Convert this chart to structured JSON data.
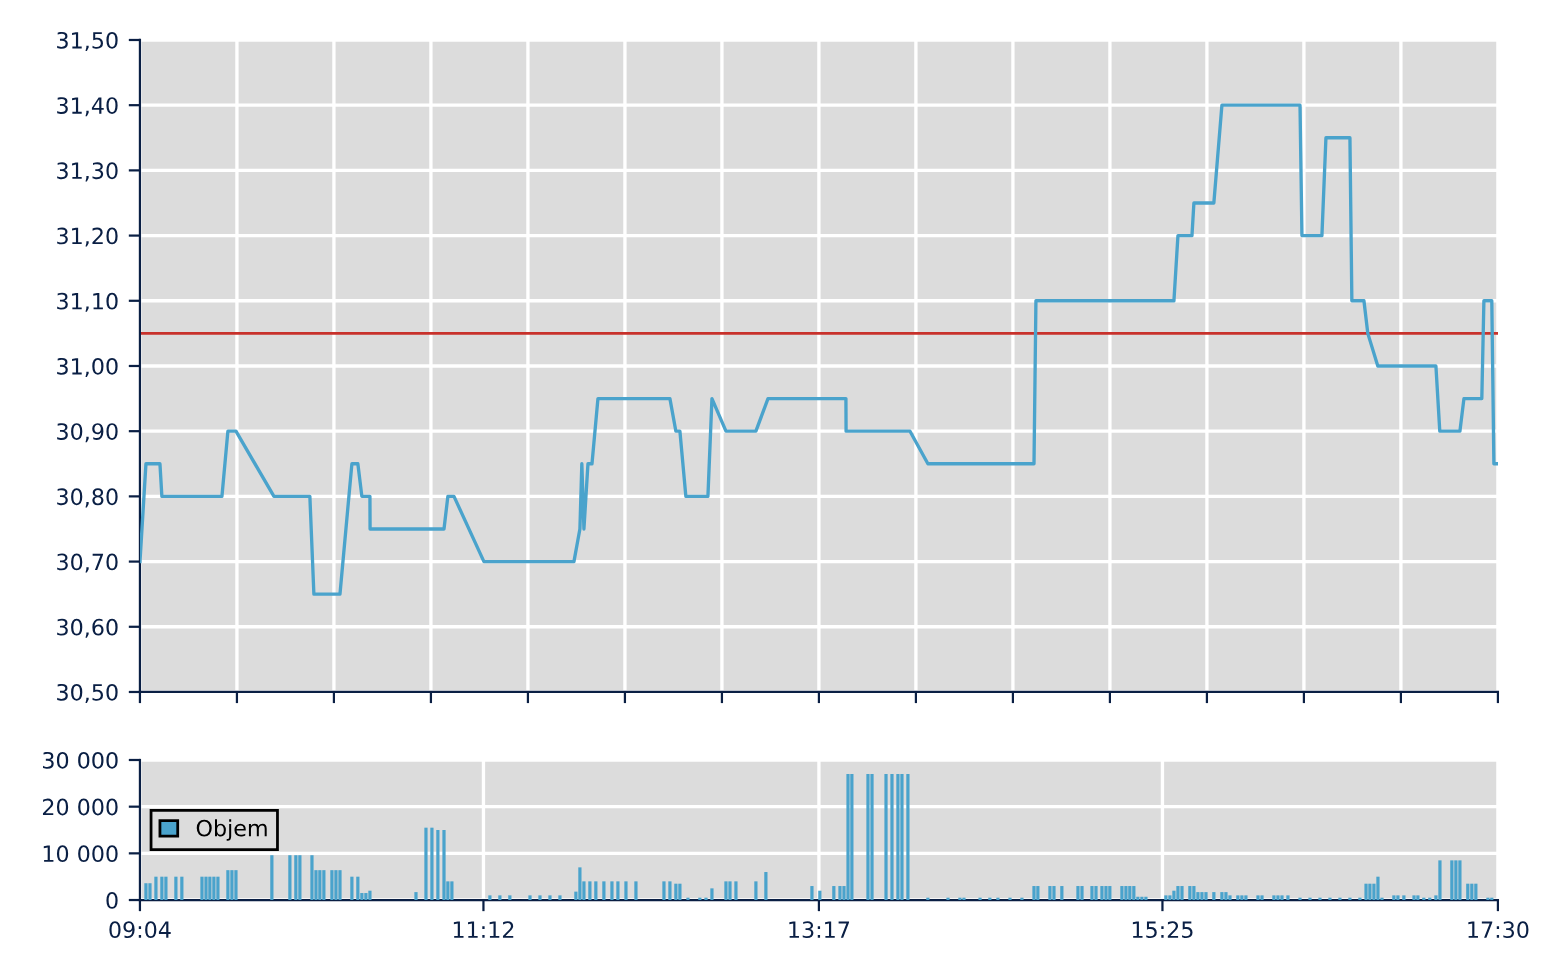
{
  "chart_data": [
    {
      "type": "line",
      "line_style": "solid",
      "marker": "none",
      "grid": true,
      "tick_labels": "y",
      "x": [
        9.067,
        9.104,
        9.191,
        9.203,
        9.576,
        9.613,
        9.663,
        9.899,
        10.122,
        10.147,
        10.309,
        10.383,
        10.42,
        10.445,
        10.495,
        10.496,
        10.955,
        10.979,
        11.017,
        11.203,
        11.762,
        11.799,
        11.811,
        11.824,
        11.849,
        11.874,
        11.911,
        12.358,
        12.395,
        12.42,
        12.457,
        12.594,
        12.619,
        12.706,
        12.892,
        12.967,
        13.451,
        13.452,
        13.849,
        13.96,
        14.619,
        14.631,
        15.488,
        15.513,
        15.6,
        15.612,
        15.736,
        15.786,
        16.271,
        16.283,
        16.407,
        16.432,
        16.581,
        16.593,
        16.668,
        16.692,
        16.754,
        17.115,
        17.139,
        17.264,
        17.289,
        17.4,
        17.413,
        17.462,
        17.475,
        17.5
      ],
      "series": [
        {
          "color": "#4aa3cc",
          "values": [
            30.7,
            30.85,
            30.85,
            30.8,
            30.8,
            30.9,
            30.9,
            30.8,
            30.8,
            30.65,
            30.65,
            30.85,
            30.85,
            30.8,
            30.8,
            30.75,
            30.75,
            30.8,
            30.8,
            30.7,
            30.7,
            30.75,
            30.85,
            30.75,
            30.85,
            30.85,
            30.95,
            30.95,
            30.9,
            30.9,
            30.8,
            30.8,
            30.95,
            30.9,
            30.9,
            30.95,
            30.95,
            30.9,
            30.9,
            30.85,
            30.85,
            31.1,
            31.1,
            31.2,
            31.2,
            31.25,
            31.25,
            31.4,
            31.4,
            31.2,
            31.2,
            31.35,
            31.35,
            31.1,
            31.1,
            31.05,
            31.0,
            31.0,
            30.9,
            30.9,
            30.95,
            30.95,
            31.1,
            31.1,
            30.85,
            30.85
          ]
        }
      ],
      "xlim": [
        9.0667,
        17.5
      ],
      "xticks": [
        {
          "value": 9.0667,
          "label": null
        },
        {
          "value": 9.6691,
          "label": null
        },
        {
          "value": 10.2714,
          "label": null
        },
        {
          "value": 10.8738,
          "label": null
        },
        {
          "value": 11.4762,
          "label": null
        },
        {
          "value": 12.0786,
          "label": null
        },
        {
          "value": 12.681,
          "label": null
        },
        {
          "value": 13.2833,
          "label": null
        },
        {
          "value": 13.8857,
          "label": null
        },
        {
          "value": 14.4881,
          "label": null
        },
        {
          "value": 15.0905,
          "label": null
        },
        {
          "value": 15.6929,
          "label": null
        },
        {
          "value": 16.2952,
          "label": null
        },
        {
          "value": 16.8976,
          "label": null
        },
        {
          "value": 17.5,
          "label": null
        }
      ],
      "ylim": [
        30.5,
        31.5
      ],
      "yticks": [
        {
          "value": 30.5,
          "label": "30,50"
        },
        {
          "value": 30.6,
          "label": "30,60"
        },
        {
          "value": 30.7,
          "label": "30,70"
        },
        {
          "value": 30.8,
          "label": "30,80"
        },
        {
          "value": 30.9,
          "label": "30,90"
        },
        {
          "value": 31.0,
          "label": "31,00"
        },
        {
          "value": 31.1,
          "label": "31,10"
        },
        {
          "value": 31.2,
          "label": "31,20"
        },
        {
          "value": 31.3,
          "label": "31,30"
        },
        {
          "value": 31.4,
          "label": "31,40"
        },
        {
          "value": 31.5,
          "label": "31,50"
        }
      ],
      "ref_lines": [
        {
          "axis": "y",
          "value": 31.05,
          "color": "#c8312b"
        }
      ]
    },
    {
      "type": "bar",
      "grid": true,
      "legend": "left",
      "x": [
        9.104,
        9.129,
        9.166,
        9.203,
        9.228,
        9.29,
        9.327,
        9.452,
        9.477,
        9.501,
        9.526,
        9.551,
        9.613,
        9.638,
        9.663,
        9.886,
        9.998,
        10.035,
        10.06,
        10.135,
        10.16,
        10.184,
        10.209,
        10.259,
        10.284,
        10.309,
        10.383,
        10.42,
        10.445,
        10.47,
        10.495,
        10.781,
        10.843,
        10.88,
        10.917,
        10.955,
        10.979,
        11.004,
        11.24,
        11.302,
        11.364,
        11.489,
        11.551,
        11.613,
        11.675,
        11.774,
        11.799,
        11.824,
        11.861,
        11.898,
        11.948,
        11.998,
        12.035,
        12.085,
        12.147,
        12.321,
        12.358,
        12.395,
        12.42,
        12.47,
        12.544,
        12.582,
        12.619,
        12.706,
        12.731,
        12.768,
        12.892,
        12.954,
        13.24,
        13.289,
        13.376,
        13.414,
        13.439,
        13.464,
        13.488,
        13.588,
        13.613,
        13.7,
        13.737,
        13.774,
        13.799,
        13.836,
        13.96,
        14.085,
        14.159,
        14.184,
        14.284,
        14.345,
        14.395,
        14.47,
        14.544,
        14.619,
        14.643,
        14.718,
        14.743,
        14.792,
        14.892,
        14.917,
        14.979,
        15.004,
        15.041,
        15.066,
        15.09,
        15.165,
        15.19,
        15.214,
        15.239,
        15.264,
        15.289,
        15.314,
        15.438,
        15.463,
        15.488,
        15.513,
        15.538,
        15.587,
        15.612,
        15.637,
        15.662,
        15.687,
        15.736,
        15.786,
        15.811,
        15.836,
        15.885,
        15.91,
        15.935,
        16.01,
        16.035,
        16.109,
        16.134,
        16.159,
        16.196,
        16.271,
        16.333,
        16.395,
        16.457,
        16.519,
        16.581,
        16.643,
        16.681,
        16.705,
        16.73,
        16.755,
        16.78,
        16.854,
        16.879,
        16.916,
        16.979,
        17.003,
        17.04,
        17.077,
        17.115,
        17.14,
        17.214,
        17.239,
        17.264,
        17.313,
        17.338,
        17.363,
        17.438,
        17.462
      ],
      "series": [
        {
          "name": "Objem",
          "color": "#4aa3cc",
          "values": [
            3600,
            3600,
            5000,
            5000,
            5000,
            5000,
            5000,
            5000,
            5000,
            5000,
            5000,
            5000,
            6400,
            6400,
            6400,
            9600,
            9600,
            9600,
            9600,
            9600,
            6400,
            6400,
            6400,
            6400,
            6400,
            6400,
            5000,
            5000,
            1500,
            1500,
            2000,
            1700,
            15500,
            15500,
            15000,
            15000,
            4000,
            4000,
            1000,
            1000,
            1000,
            1000,
            1000,
            1000,
            1000,
            1800,
            7000,
            4000,
            4000,
            4000,
            4000,
            4000,
            4000,
            4000,
            4000,
            4000,
            4000,
            3500,
            3500,
            500,
            500,
            500,
            2500,
            4000,
            4000,
            4000,
            4000,
            6000,
            3000,
            2000,
            3000,
            3000,
            3000,
            27000,
            27000,
            27000,
            27000,
            27000,
            27000,
            27000,
            27000,
            27000,
            500,
            500,
            500,
            500,
            500,
            500,
            500,
            500,
            500,
            3000,
            3000,
            3000,
            3000,
            3000,
            3000,
            3000,
            3000,
            3000,
            3000,
            3000,
            3000,
            3000,
            3000,
            3000,
            3000,
            700,
            700,
            700,
            1000,
            1000,
            2000,
            3000,
            3000,
            3000,
            3000,
            1700,
            1700,
            1700,
            1700,
            1700,
            1700,
            1000,
            1000,
            1000,
            1000,
            1000,
            1000,
            1000,
            1000,
            1000,
            1000,
            500,
            500,
            500,
            500,
            500,
            500,
            500,
            3500,
            3500,
            3500,
            5000,
            500,
            1000,
            1000,
            1000,
            1000,
            1000,
            500,
            500,
            1000,
            8500,
            8500,
            8500,
            8500,
            3500,
            3500,
            3500,
            500,
            500
          ]
        }
      ],
      "xlim": [
        9.0667,
        17.5
      ],
      "xticks": [
        {
          "value": 9.0667,
          "label": "09:04"
        },
        {
          "value": 11.2,
          "label": "11:12"
        },
        {
          "value": 13.2833,
          "label": "13:17"
        },
        {
          "value": 15.4167,
          "label": "15:25"
        },
        {
          "value": 17.5,
          "label": "17:30"
        }
      ],
      "ylim": [
        0,
        30000
      ],
      "yticks": [
        0,
        {
          "value": 10000,
          "label": "10 000"
        },
        {
          "value": 20000,
          "label": "20 000"
        },
        {
          "value": 30000,
          "label": "30 000"
        }
      ]
    }
  ]
}
